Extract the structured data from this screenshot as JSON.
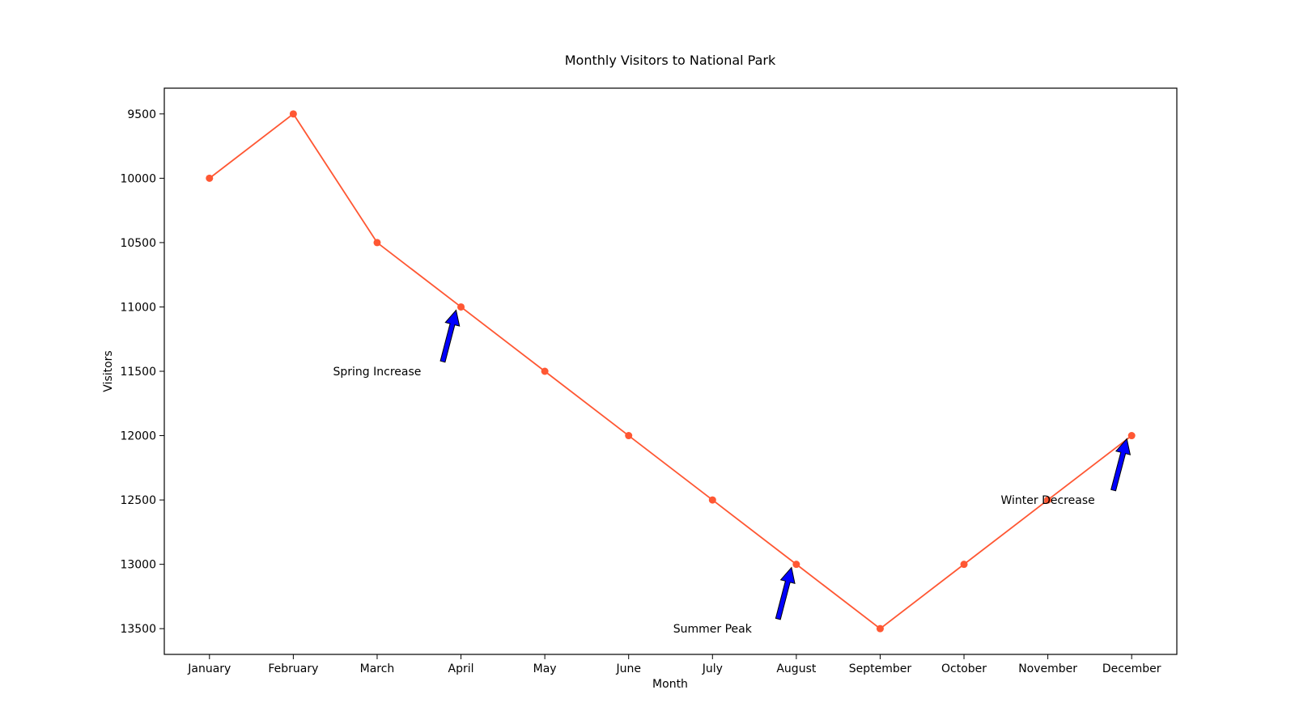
{
  "chart_data": {
    "type": "line",
    "title": "Monthly Visitors to National Park",
    "xlabel": "Month",
    "ylabel": "Visitors",
    "categories": [
      "January",
      "February",
      "March",
      "April",
      "May",
      "June",
      "July",
      "August",
      "September",
      "October",
      "November",
      "December"
    ],
    "series": [
      {
        "values": [
          10000,
          9500,
          10500,
          11000,
          11500,
          12000,
          12500,
          13000,
          13500,
          13000,
          12500,
          12000
        ],
        "color": "#ff5733",
        "marker": "circle"
      }
    ],
    "ylim": [
      9300,
      13700
    ],
    "y_inverted": true,
    "yticks": [
      9500,
      10000,
      10500,
      11000,
      11500,
      12000,
      12500,
      13000,
      13500
    ],
    "grid": false,
    "annotations": [
      {
        "text": "Spring Increase",
        "target_category": "April",
        "target_value": 11000,
        "text_category": "March",
        "text_value": 11500
      },
      {
        "text": "Summer Peak",
        "target_category": "August",
        "target_value": 13000,
        "text_category": "July",
        "text_value": 13500
      },
      {
        "text": "Winter Decrease",
        "target_category": "December",
        "target_value": 12000,
        "text_category": "November",
        "text_value": 12500
      }
    ],
    "arrow_color": "#0000ff"
  }
}
